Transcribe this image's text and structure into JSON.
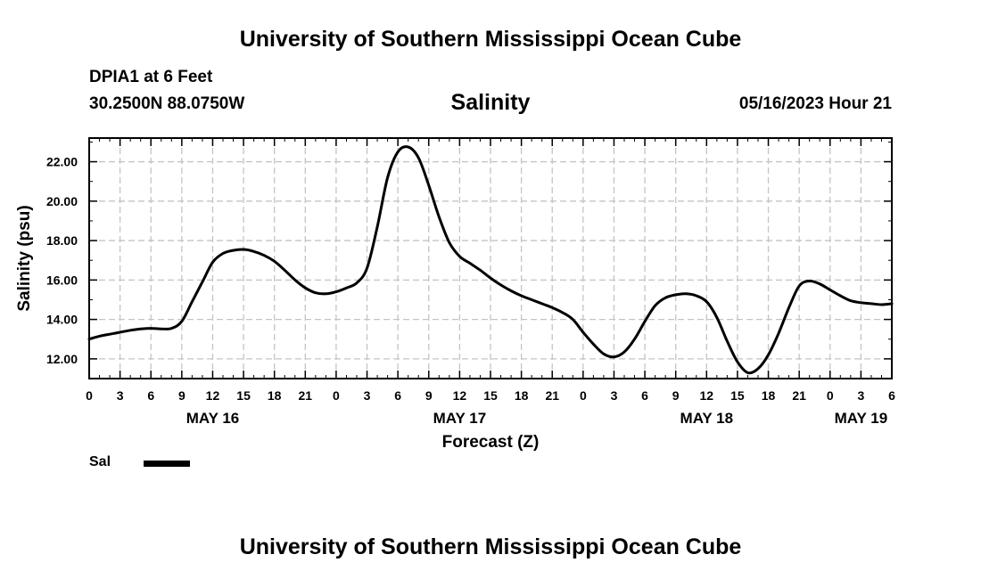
{
  "header": {
    "title": "University of Southern Mississippi Ocean Cube",
    "station": "DPIA1 at 6 Feet",
    "coords": "30.2500N  88.0750W",
    "timestamp": "05/16/2023 Hour 21"
  },
  "footer": {
    "title": "University of Southern Mississippi Ocean Cube"
  },
  "legend": {
    "label": "Sal",
    "color": "#000000"
  },
  "chart_data": {
    "type": "line",
    "title": "Salinity",
    "xlabel": "Forecast (Z)",
    "ylabel": "Salinity (psu)",
    "xlim": [
      0,
      78
    ],
    "ylim": [
      11.0,
      23.2
    ],
    "grid": true,
    "x_ticks": [
      0,
      3,
      6,
      9,
      12,
      15,
      18,
      21,
      24,
      27,
      30,
      33,
      36,
      39,
      42,
      45,
      48,
      51,
      54,
      57,
      60,
      63,
      66,
      69,
      72,
      75,
      78
    ],
    "x_tick_labels": [
      "0",
      "3",
      "6",
      "9",
      "12",
      "15",
      "18",
      "21",
      "0",
      "3",
      "6",
      "9",
      "12",
      "15",
      "18",
      "21",
      "0",
      "3",
      "6",
      "9",
      "12",
      "15",
      "18",
      "21",
      "0",
      "3",
      "6"
    ],
    "y_ticks": [
      12,
      14,
      16,
      18,
      20,
      22
    ],
    "y_tick_labels": [
      "12.00",
      "14.00",
      "16.00",
      "18.00",
      "20.00",
      "22.00"
    ],
    "date_labels": [
      {
        "x": 12,
        "label": "MAY 16"
      },
      {
        "x": 36,
        "label": "MAY 17"
      },
      {
        "x": 60,
        "label": "MAY 18"
      },
      {
        "x": 75,
        "label": "MAY 19"
      }
    ],
    "series": [
      {
        "name": "Sal",
        "color": "#000000",
        "x": [
          0,
          1,
          2,
          3,
          4,
          5,
          6,
          7,
          8,
          9,
          10,
          11,
          12,
          13,
          14,
          15,
          16,
          17,
          18,
          19,
          20,
          21,
          22,
          23,
          24,
          25,
          26,
          27,
          28,
          29,
          30,
          31,
          32,
          33,
          34,
          35,
          36,
          37,
          38,
          39,
          40,
          41,
          42,
          43,
          44,
          45,
          46,
          47,
          48,
          49,
          50,
          51,
          52,
          53,
          54,
          55,
          56,
          57,
          58,
          59,
          60,
          61,
          62,
          63,
          64,
          65,
          66,
          67,
          68,
          69,
          70,
          71,
          72,
          73,
          74,
          75,
          76,
          77,
          78
        ],
        "values": [
          13.0,
          13.15,
          13.25,
          13.35,
          13.45,
          13.52,
          13.55,
          13.52,
          13.55,
          13.9,
          14.9,
          15.9,
          16.9,
          17.35,
          17.5,
          17.55,
          17.45,
          17.25,
          16.95,
          16.5,
          16.0,
          15.6,
          15.35,
          15.3,
          15.4,
          15.6,
          15.85,
          16.6,
          18.7,
          21.2,
          22.5,
          22.75,
          22.2,
          20.8,
          19.2,
          17.9,
          17.2,
          16.85,
          16.5,
          16.1,
          15.75,
          15.45,
          15.2,
          15.0,
          14.8,
          14.6,
          14.35,
          14.0,
          13.35,
          12.75,
          12.25,
          12.1,
          12.35,
          13.0,
          13.9,
          14.7,
          15.1,
          15.25,
          15.3,
          15.2,
          14.9,
          14.1,
          12.9,
          11.85,
          11.3,
          11.5,
          12.2,
          13.3,
          14.6,
          15.7,
          15.95,
          15.8,
          15.5,
          15.2,
          14.95,
          14.85,
          14.8,
          14.75,
          14.8
        ]
      }
    ]
  }
}
